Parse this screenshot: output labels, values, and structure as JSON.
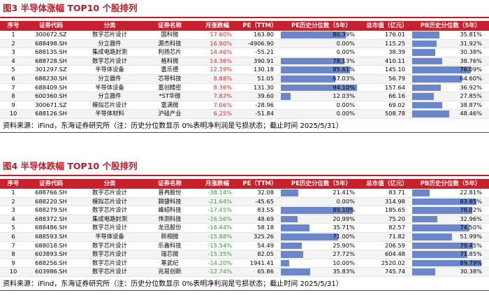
{
  "fig3": {
    "title": "图3  半导体涨幅 TOP10 个股排列",
    "headers": [
      "序号",
      "证券代码",
      "分类",
      "证券名称",
      "月涨跌幅",
      "PE（TTM）",
      "PE历史分位数（5年）",
      "总市值（亿元）",
      "PB历史分位数（5年）"
    ],
    "rows": [
      {
        "no": "1",
        "code": "300672.SZ",
        "cat": "数字芯片设计",
        "name": "国科微",
        "chg": "17.60%",
        "pe": "163.80",
        "pe_pct": "80.39%",
        "pe_frac": 0.8039,
        "mcap": "176.01",
        "pb_pct": "35.81%",
        "pb_frac": 0.3581
      },
      {
        "no": "2",
        "code": "688498.SH",
        "cat": "分立器件",
        "name": "源杰科技",
        "chg": "16.90%",
        "pe": "-4906.90",
        "pe_pct": "0.00%",
        "pe_frac": 0.0,
        "mcap": "115.25",
        "pb_pct": "31.92%",
        "pb_frac": 0.3192
      },
      {
        "no": "3",
        "code": "688135.SH",
        "cat": "集成电路封测",
        "name": "利扬芯片",
        "chg": "14.46%",
        "pe": "-55.21",
        "pe_pct": "0.00%",
        "pe_frac": 0.0,
        "mcap": "38.39",
        "pb_pct": "30.38%",
        "pb_frac": 0.3038
      },
      {
        "no": "4",
        "code": "688728.SH",
        "cat": "数字芯片设计",
        "name": "格科微",
        "chg": "14.36%",
        "pe": "390.91",
        "pe_pct": "78.13%",
        "pe_frac": 0.7813,
        "mcap": "410.11",
        "pb_pct": "38.76%",
        "pb_frac": 0.3876
      },
      {
        "no": "5",
        "code": "301297.SZ",
        "cat": "半导体设备",
        "name": "富乐德",
        "chg": "12.19%",
        "pe": "130.18",
        "pe_pct": "85.61%",
        "pe_frac": 0.8561,
        "mcap": "145.10",
        "pb_pct": "76.09%",
        "pb_frac": 0.7609
      },
      {
        "no": "6",
        "code": "688230.SH",
        "cat": "分立器件",
        "name": "芯导科技",
        "chg": "8.88%",
        "pe": "51.05",
        "pe_pct": "67.03%",
        "pe_frac": 0.6703,
        "mcap": "56.79",
        "pb_pct": "64.60%",
        "pb_frac": 0.646
      },
      {
        "no": "7",
        "code": "688409.SH",
        "cat": "半导体设备",
        "name": "富创精密",
        "chg": "8.36%",
        "pe": "131.30",
        "pe_pct": "94.10%",
        "pe_frac": 0.941,
        "mcap": "157.64",
        "pb_pct": "36.92%",
        "pb_frac": 0.3692
      },
      {
        "no": "8",
        "code": "600360.SH",
        "cat": "分立器件",
        "name": "*ST华微",
        "chg": "7.82%",
        "pe": "39.60",
        "pe_pct": "12.03%",
        "pe_frac": 0.1203,
        "mcap": "66.16",
        "pb_pct": "27.85%",
        "pb_frac": 0.2785
      },
      {
        "no": "9",
        "code": "300671.SZ",
        "cat": "模拟芯片设计",
        "name": "富满微",
        "chg": "7.06%",
        "pe": "-28.96",
        "pe_pct": "0.00%",
        "pe_frac": 0.0,
        "mcap": "69.02",
        "pb_pct": "38.87%",
        "pb_frac": 0.3887
      },
      {
        "no": "10",
        "code": "688126.SH",
        "cat": "半导体材料",
        "name": "沪硅产业",
        "chg": "6.25%",
        "pe": "-51.84",
        "pe_pct": "0.00%",
        "pe_frac": 0.0,
        "mcap": "508.78",
        "pb_pct": "48.46%",
        "pb_frac": 0.4846
      }
    ],
    "source": "资料来源：iFind，东海证券研究所（注：历史分位数显示 0%表明净利润是亏损状态；截止时间 2025/5/31）"
  },
  "fig4": {
    "title": "图4  半导体跌幅 TOP10 个股排列",
    "headers": [
      "序号",
      "证券代码",
      "分类",
      "证券名称",
      "月涨跌幅",
      "PE（TTM）",
      "PE历史分位数（5年）",
      "总市值（亿元）",
      "PB历史分位数（5年）"
    ],
    "rows": [
      {
        "no": "1",
        "code": "688766.SH",
        "cat": "数字芯片设计",
        "name": "普冉股份",
        "chg": "-38.14%",
        "pe": "32.08",
        "pe_pct": "21.41%",
        "pe_frac": 0.2141,
        "mcap": "83.71",
        "pb_pct": "22.81%",
        "pb_frac": 0.2281
      },
      {
        "no": "2",
        "code": "688220.SH",
        "cat": "模拟芯片设计",
        "name": "翱捷科技",
        "chg": "-21.64%",
        "pe": "-45.65",
        "pe_pct": "0.00%",
        "pe_frac": 0.0,
        "mcap": "314.98",
        "pb_pct": "83.85%",
        "pb_frac": 0.8385
      },
      {
        "no": "3",
        "code": "688279.SH",
        "cat": "数字芯片设计",
        "name": "峰岹科技",
        "chg": "-17.45%",
        "pe": "83.55",
        "pe_pct": "89.10%",
        "pe_frac": 0.891,
        "mcap": "185.65",
        "pb_pct": "78.02%",
        "pb_frac": 0.7802
      },
      {
        "no": "4",
        "code": "688372.SH",
        "cat": "集成电路封测",
        "name": "伟测科技",
        "chg": "-16.56%",
        "pe": "48.69",
        "pe_pct": "20.99%",
        "pe_frac": 0.2099,
        "mcap": "75.20",
        "pb_pct": "32.96%",
        "pb_frac": 0.3296
      },
      {
        "no": "5",
        "code": "688486.SH",
        "cat": "数字芯片设计",
        "name": "龙迅股份",
        "chg": "-16.44%",
        "pe": "58.18",
        "pe_pct": "35.71%",
        "pe_frac": 0.3571,
        "mcap": "82.57",
        "pb_pct": "74.50%",
        "pb_frac": 0.745
      },
      {
        "no": "6",
        "code": "688593.SH",
        "cat": "半导体设备",
        "name": "新相微",
        "chg": "-15.88%",
        "pe": "325.26",
        "pe_pct": "71.00%",
        "pe_frac": 0.71,
        "mcap": "71.82",
        "pb_pct": "51.99%",
        "pb_frac": 0.5199
      },
      {
        "no": "7",
        "code": "688018.SH",
        "cat": "数字芯片设计",
        "name": "乐鑫科技",
        "chg": "-15.54%",
        "pe": "54.49",
        "pe_pct": "25.90%",
        "pe_frac": 0.259,
        "mcap": "206.59",
        "pb_pct": "79.45%",
        "pb_frac": 0.7945
      },
      {
        "no": "8",
        "code": "603893.SH",
        "cat": "数字芯片设计",
        "name": "瑞芯微",
        "chg": "-15.35%",
        "pe": "82.05",
        "pe_pct": "27.72%",
        "pe_frac": 0.2772,
        "mcap": "604.48",
        "pb_pct": "71.85%",
        "pb_frac": 0.7185
      },
      {
        "no": "9",
        "code": "688256.SH",
        "cat": "数字芯片设计",
        "name": "寒武纪",
        "chg": "-14.20%",
        "pe": "1941.41",
        "pe_pct": "10.00%",
        "pe_frac": 0.1,
        "mcap": "2520.02",
        "pb_pct": "89.79%",
        "pb_frac": 0.8979
      },
      {
        "no": "10",
        "code": "603986.SH",
        "cat": "数字芯片设计",
        "name": "兆易创新",
        "chg": "-12.74%",
        "pe": "65.86",
        "pe_pct": "35.83%",
        "pe_frac": 0.3583,
        "mcap": "745.74",
        "pb_pct": "30.38%",
        "pb_frac": 0.3038
      }
    ],
    "source": "资料来源：iFind，东海证券研究所（注：历史分位数显示 0%表明净利润是亏损状态；截止时间 2025/5/31）"
  },
  "colors": {
    "brand_red": "#b3202a",
    "header_bg": "#c8202c",
    "up": "#e8262c",
    "down": "#3a9a3a",
    "bar": "#6b86c9"
  }
}
